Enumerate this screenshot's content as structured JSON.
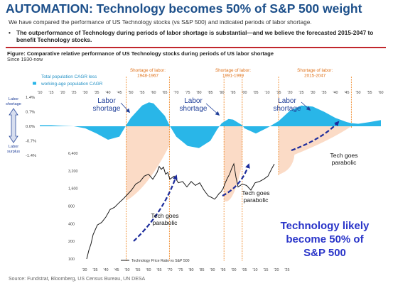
{
  "header": {
    "title": "AUTOMATION: Technology becomes 50% of S&P 500 weight",
    "subtitle": "We have compared the performance of US Technology stocks (vs S&P 500) and indicated periods of labor shortage.",
    "bullet": "The outperformance of Technology during periods of labor shortage is substantial—and we believe the forecasted 2015-2047 to benefit Technology stocks."
  },
  "figure": {
    "title": "Figure: Comparative relative performance of US Technology stocks during periods of US labor shortage",
    "since": "Since 1930-now"
  },
  "source": "Source: Fundstrat, Bloomberg, US Census Bureau, UN DESA",
  "colors": {
    "title": "#1c4f8a",
    "cagr_fill": "#29b6e8",
    "shortage_fill": "#fbd7c0",
    "shortage_line": "#f08a2c",
    "shortage_label": "#e0731c",
    "price_line": "#1a1a1a",
    "annotation_blue": "#1f3f99",
    "arrow_navy": "#1c2c9c",
    "rule_red": "#c1272d"
  },
  "annotations": {
    "labor_shortage_1": "Labor shortage",
    "labor_shortage_2": "Labor shortage",
    "labor_shortage_3": "Labor shortage",
    "tech_goes_parabolic_1": "Tech goes parabolic",
    "tech_goes_parabolic_2": "Tech goes parabolic",
    "tech_goes_parabolic_3": "Tech goes parabolic",
    "big_text": "Technology likely become 50% of S&P 500"
  },
  "chart_data": {
    "type": "line",
    "top_panel": {
      "legend": [
        "Total population CAGR less",
        "working-age population CAGR"
      ],
      "side_label_top": "Labor shortage",
      "side_label_bottom": "Labor surplus",
      "yticks": [
        "1.4%",
        "0.7%",
        "0.0%",
        "-0.7%",
        "-1.4%"
      ],
      "ylim": [
        -1.4,
        1.4
      ],
      "x_ticks": [
        "'10",
        "'15",
        "'20",
        "'25",
        "'30",
        "'35",
        "'40",
        "'45",
        "'50",
        "'55",
        "'60",
        "'65",
        "'70",
        "'75",
        "'80",
        "'85",
        "'90",
        "'95",
        "'00",
        "'05",
        "'10",
        "'15",
        "'20",
        "'25",
        "'30",
        "'35",
        "'40",
        "'45",
        "'50",
        "'55",
        "'60"
      ],
      "x_range": [
        1910,
        2060
      ],
      "series": {
        "x": [
          1910,
          1915,
          1920,
          1925,
          1930,
          1935,
          1940,
          1945,
          1948,
          1950,
          1955,
          1958,
          1960,
          1965,
          1967,
          1970,
          1975,
          1980,
          1985,
          1988,
          1990,
          1993,
          1995,
          1999,
          2000,
          2005,
          2010,
          2015,
          2020,
          2025,
          2030,
          2035,
          2040,
          2045,
          2047,
          2050,
          2055,
          2060
        ],
        "y": [
          0.05,
          0.05,
          0.02,
          0.0,
          -0.1,
          -0.35,
          -0.65,
          -0.5,
          0.05,
          0.4,
          1.0,
          1.15,
          1.1,
          0.5,
          0.05,
          -0.5,
          -0.95,
          -1.05,
          -0.7,
          -0.15,
          0.15,
          0.35,
          0.32,
          0.05,
          -0.1,
          -0.35,
          -0.08,
          0.25,
          0.75,
          1.0,
          0.95,
          0.7,
          0.4,
          0.2,
          0.15,
          0.12,
          0.2,
          0.3
        ]
      }
    },
    "bottom_panel": {
      "series_name": "Technology Price Ratio vs S&P 500",
      "scale": "log",
      "yticks": [
        6400,
        3200,
        1600,
        800,
        400,
        200,
        100
      ],
      "x_ticks": [
        "'30",
        "'35",
        "'40",
        "'45",
        "'50",
        "'55",
        "'60",
        "'65",
        "'70",
        "'75",
        "'80",
        "'85",
        "'90",
        "'95",
        "'00",
        "'05",
        "'10",
        "'15",
        "'20",
        "'25"
      ],
      "x_range": [
        1930,
        2025
      ],
      "x": [
        1931,
        1932,
        1933,
        1934,
        1936,
        1938,
        1940,
        1942,
        1944,
        1946,
        1948,
        1950,
        1952,
        1954,
        1956,
        1958,
        1960,
        1962,
        1964,
        1965,
        1966,
        1967,
        1968,
        1969,
        1970,
        1972,
        1974,
        1976,
        1978,
        1980,
        1982,
        1984,
        1986,
        1988,
        1990,
        1991,
        1992,
        1993,
        1994,
        1995,
        1996,
        1997,
        1998,
        1999,
        2000,
        2001,
        2002,
        2004,
        2006,
        2008,
        2010,
        2012,
        2014,
        2016,
        2018,
        2019
      ],
      "y": [
        100,
        140,
        180,
        260,
        380,
        420,
        520,
        700,
        760,
        900,
        1050,
        1250,
        1500,
        1900,
        2100,
        2600,
        2800,
        2300,
        3000,
        3800,
        3400,
        3700,
        2800,
        3000,
        2300,
        2600,
        2000,
        2100,
        1700,
        2100,
        1800,
        2000,
        1500,
        1200,
        1100,
        1050,
        1150,
        1300,
        1400,
        1600,
        2000,
        2400,
        2800,
        3500,
        4200,
        2500,
        1700,
        1900,
        1800,
        1500,
        2000,
        2100,
        2300,
        2600,
        3600,
        4200
      ]
    },
    "shortage_periods": [
      {
        "label": "Shortage of labor: 1948-1967",
        "start": 1948,
        "end": 1967
      },
      {
        "label": "Shortage of labor: 1991-1999",
        "start": 1991,
        "end": 1999
      },
      {
        "label": "Shortage of labor: 2015-2047",
        "start": 2015,
        "end": 2047
      }
    ]
  }
}
